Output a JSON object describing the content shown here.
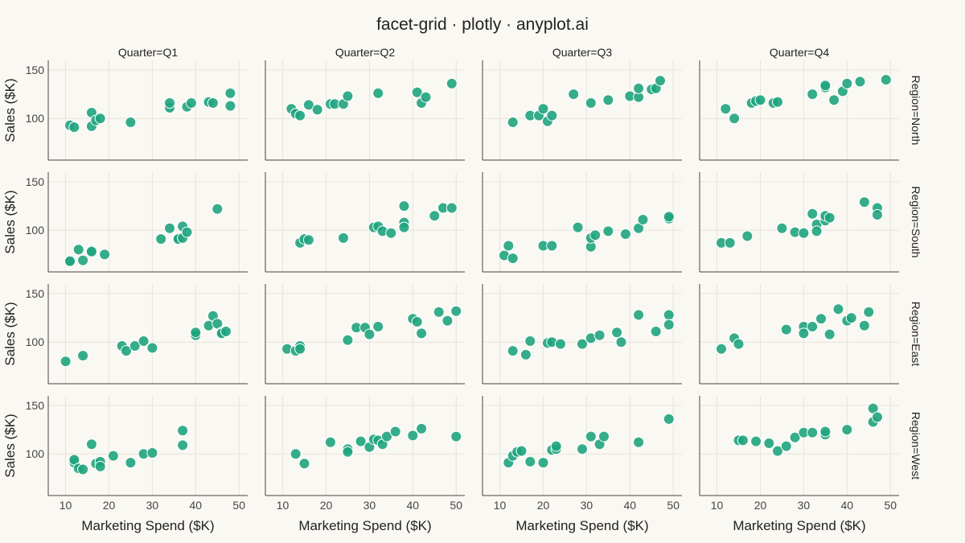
{
  "chart_data": {
    "type": "scatter",
    "title": "facet-grid · plotly · anyplot.ai",
    "xlabel": "Marketing Spend ($K)",
    "ylabel": "Sales ($K)",
    "xlim": [
      6,
      52
    ],
    "ylim": [
      57,
      160
    ],
    "x_ticks": [
      10,
      20,
      30,
      40,
      50
    ],
    "y_ticks": [
      100,
      150
    ],
    "grid": true,
    "marker_color": "#1FA37E",
    "col_facets": [
      "Quarter=Q1",
      "Quarter=Q2",
      "Quarter=Q3",
      "Quarter=Q4"
    ],
    "row_facets": [
      "Region=North",
      "Region=South",
      "Region=East",
      "Region=West"
    ],
    "panels": [
      {
        "row": "Region=North",
        "col": "Quarter=Q1",
        "points": [
          [
            11,
            93
          ],
          [
            12,
            91
          ],
          [
            16,
            106
          ],
          [
            16,
            92
          ],
          [
            17,
            98
          ],
          [
            18,
            100
          ],
          [
            25,
            96
          ],
          [
            34,
            111
          ],
          [
            34,
            116
          ],
          [
            38,
            112
          ],
          [
            39,
            116
          ],
          [
            43,
            117
          ],
          [
            44,
            116
          ],
          [
            48,
            126
          ],
          [
            48,
            113
          ]
        ]
      },
      {
        "row": "Region=North",
        "col": "Quarter=Q2",
        "points": [
          [
            12,
            110
          ],
          [
            13,
            105
          ],
          [
            14,
            103
          ],
          [
            16,
            114
          ],
          [
            18,
            109
          ],
          [
            21,
            115
          ],
          [
            22,
            115
          ],
          [
            24,
            115
          ],
          [
            25,
            123
          ],
          [
            32,
            126
          ],
          [
            41,
            127
          ],
          [
            42,
            116
          ],
          [
            43,
            122
          ],
          [
            49,
            136
          ]
        ]
      },
      {
        "row": "Region=North",
        "col": "Quarter=Q3",
        "points": [
          [
            13,
            96
          ],
          [
            17,
            103
          ],
          [
            19,
            103
          ],
          [
            20,
            110
          ],
          [
            21,
            97
          ],
          [
            22,
            103
          ],
          [
            27,
            125
          ],
          [
            31,
            116
          ],
          [
            35,
            119
          ],
          [
            40,
            123
          ],
          [
            42,
            122
          ],
          [
            42,
            131
          ],
          [
            45,
            130
          ],
          [
            46,
            131
          ],
          [
            47,
            139
          ]
        ]
      },
      {
        "row": "Region=North",
        "col": "Quarter=Q4",
        "points": [
          [
            12,
            110
          ],
          [
            14,
            100
          ],
          [
            18,
            116
          ],
          [
            19,
            118
          ],
          [
            20,
            119
          ],
          [
            23,
            116
          ],
          [
            24,
            117
          ],
          [
            32,
            125
          ],
          [
            35,
            132
          ],
          [
            35,
            134
          ],
          [
            37,
            119
          ],
          [
            39,
            128
          ],
          [
            40,
            136
          ],
          [
            43,
            138
          ],
          [
            49,
            140
          ]
        ]
      },
      {
        "row": "Region=South",
        "col": "Quarter=Q1",
        "points": [
          [
            11,
            69
          ],
          [
            11,
            68
          ],
          [
            13,
            80
          ],
          [
            14,
            69
          ],
          [
            16,
            79
          ],
          [
            16,
            78
          ],
          [
            19,
            75
          ],
          [
            32,
            91
          ],
          [
            34,
            102
          ],
          [
            36,
            92
          ],
          [
            36,
            91
          ],
          [
            37,
            92
          ],
          [
            37,
            104
          ],
          [
            38,
            98
          ],
          [
            45,
            122
          ]
        ]
      },
      {
        "row": "Region=South",
        "col": "Quarter=Q2",
        "points": [
          [
            14,
            87
          ],
          [
            15,
            91
          ],
          [
            16,
            90
          ],
          [
            24,
            92
          ],
          [
            31,
            103
          ],
          [
            32,
            104
          ],
          [
            33,
            99
          ],
          [
            35,
            97
          ],
          [
            38,
            108
          ],
          [
            38,
            125
          ],
          [
            38,
            103
          ],
          [
            45,
            115
          ],
          [
            47,
            123
          ],
          [
            49,
            123
          ]
        ]
      },
      {
        "row": "Region=South",
        "col": "Quarter=Q3",
        "points": [
          [
            11,
            74
          ],
          [
            12,
            84
          ],
          [
            13,
            71
          ],
          [
            20,
            84
          ],
          [
            22,
            84
          ],
          [
            28,
            103
          ],
          [
            31,
            83
          ],
          [
            31,
            92
          ],
          [
            32,
            95
          ],
          [
            35,
            99
          ],
          [
            39,
            96
          ],
          [
            42,
            102
          ],
          [
            43,
            111
          ],
          [
            49,
            112
          ],
          [
            49,
            114
          ]
        ]
      },
      {
        "row": "Region=South",
        "col": "Quarter=Q4",
        "points": [
          [
            11,
            87
          ],
          [
            13,
            87
          ],
          [
            17,
            94
          ],
          [
            25,
            102
          ],
          [
            28,
            98
          ],
          [
            30,
            97
          ],
          [
            32,
            117
          ],
          [
            33,
            106
          ],
          [
            33,
            99
          ],
          [
            35,
            110
          ],
          [
            35,
            115
          ],
          [
            36,
            113
          ],
          [
            44,
            129
          ],
          [
            47,
            123
          ],
          [
            47,
            116
          ]
        ]
      },
      {
        "row": "Region=East",
        "col": "Quarter=Q1",
        "points": [
          [
            10,
            80
          ],
          [
            14,
            86
          ],
          [
            23,
            96
          ],
          [
            24,
            91
          ],
          [
            26,
            96
          ],
          [
            28,
            101
          ],
          [
            30,
            94
          ],
          [
            40,
            107
          ],
          [
            40,
            110
          ],
          [
            43,
            117
          ],
          [
            44,
            127
          ],
          [
            45,
            119
          ],
          [
            46,
            110
          ],
          [
            46,
            109
          ],
          [
            47,
            111
          ]
        ]
      },
      {
        "row": "Region=East",
        "col": "Quarter=Q2",
        "points": [
          [
            11,
            93
          ],
          [
            13,
            91
          ],
          [
            14,
            96
          ],
          [
            14,
            93
          ],
          [
            25,
            102
          ],
          [
            27,
            115
          ],
          [
            29,
            115
          ],
          [
            30,
            108
          ],
          [
            32,
            116
          ],
          [
            40,
            124
          ],
          [
            41,
            121
          ],
          [
            42,
            109
          ],
          [
            46,
            131
          ],
          [
            48,
            122
          ],
          [
            50,
            132
          ]
        ]
      },
      {
        "row": "Region=East",
        "col": "Quarter=Q3",
        "points": [
          [
            13,
            91
          ],
          [
            16,
            87
          ],
          [
            17,
            101
          ],
          [
            21,
            99
          ],
          [
            22,
            100
          ],
          [
            24,
            98
          ],
          [
            29,
            98
          ],
          [
            31,
            104
          ],
          [
            33,
            107
          ],
          [
            37,
            110
          ],
          [
            38,
            100
          ],
          [
            42,
            128
          ],
          [
            46,
            111
          ],
          [
            49,
            128
          ],
          [
            49,
            118
          ]
        ]
      },
      {
        "row": "Region=East",
        "col": "Quarter=Q4",
        "points": [
          [
            11,
            93
          ],
          [
            14,
            104
          ],
          [
            15,
            98
          ],
          [
            26,
            113
          ],
          [
            30,
            116
          ],
          [
            30,
            109
          ],
          [
            32,
            116
          ],
          [
            34,
            124
          ],
          [
            36,
            108
          ],
          [
            38,
            134
          ],
          [
            40,
            122
          ],
          [
            41,
            125
          ],
          [
            44,
            117
          ],
          [
            45,
            131
          ]
        ]
      },
      {
        "row": "Region=West",
        "col": "Quarter=Q1",
        "points": [
          [
            12,
            91
          ],
          [
            12,
            94
          ],
          [
            13,
            85
          ],
          [
            14,
            84
          ],
          [
            16,
            110
          ],
          [
            17,
            90
          ],
          [
            18,
            92
          ],
          [
            18,
            87
          ],
          [
            21,
            98
          ],
          [
            25,
            91
          ],
          [
            28,
            100
          ],
          [
            30,
            101
          ],
          [
            37,
            124
          ],
          [
            37,
            109
          ]
        ]
      },
      {
        "row": "Region=West",
        "col": "Quarter=Q2",
        "points": [
          [
            13,
            100
          ],
          [
            15,
            90
          ],
          [
            21,
            112
          ],
          [
            25,
            105
          ],
          [
            25,
            102
          ],
          [
            28,
            113
          ],
          [
            30,
            107
          ],
          [
            31,
            115
          ],
          [
            32,
            114
          ],
          [
            33,
            110
          ],
          [
            34,
            118
          ],
          [
            36,
            123
          ],
          [
            40,
            119
          ],
          [
            42,
            126
          ],
          [
            50,
            118
          ]
        ]
      },
      {
        "row": "Region=West",
        "col": "Quarter=Q3",
        "points": [
          [
            12,
            91
          ],
          [
            13,
            98
          ],
          [
            14,
            102
          ],
          [
            15,
            103
          ],
          [
            17,
            92
          ],
          [
            20,
            91
          ],
          [
            22,
            104
          ],
          [
            23,
            105
          ],
          [
            23,
            108
          ],
          [
            29,
            105
          ],
          [
            31,
            118
          ],
          [
            33,
            110
          ],
          [
            34,
            118
          ],
          [
            42,
            112
          ],
          [
            49,
            136
          ]
        ]
      },
      {
        "row": "Region=West",
        "col": "Quarter=Q4",
        "points": [
          [
            15,
            114
          ],
          [
            16,
            114
          ],
          [
            19,
            113
          ],
          [
            22,
            111
          ],
          [
            24,
            103
          ],
          [
            26,
            108
          ],
          [
            28,
            117
          ],
          [
            30,
            122
          ],
          [
            32,
            122
          ],
          [
            35,
            120
          ],
          [
            35,
            123
          ],
          [
            40,
            125
          ],
          [
            46,
            133
          ],
          [
            46,
            147
          ],
          [
            47,
            138
          ]
        ]
      }
    ]
  }
}
